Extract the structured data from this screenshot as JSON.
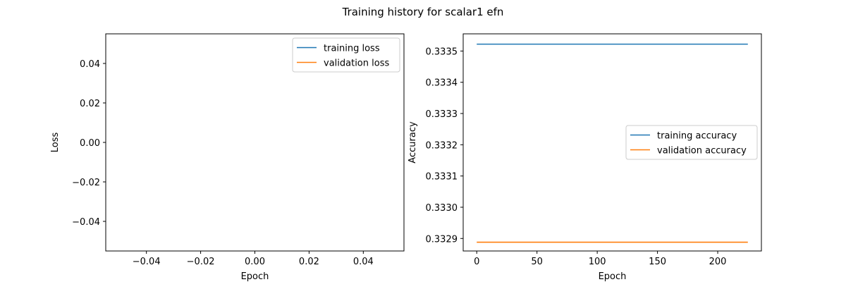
{
  "figure": {
    "title": "Training history for scalar1 efn"
  },
  "chart_data": [
    {
      "type": "line",
      "title": "",
      "xlabel": "Epoch",
      "ylabel": "Loss",
      "xlim": [
        -0.055,
        0.055
      ],
      "ylim": [
        -0.055,
        0.055
      ],
      "xticks": [
        -0.04,
        -0.02,
        0.0,
        0.02,
        0.04
      ],
      "xtick_labels": [
        "−0.04",
        "−0.02",
        "0.00",
        "0.02",
        "0.04"
      ],
      "yticks": [
        -0.04,
        -0.02,
        0.0,
        0.02,
        0.04
      ],
      "ytick_labels": [
        "−0.04",
        "−0.02",
        "0.00",
        "0.02",
        "0.04"
      ],
      "grid": false,
      "legend_position": "upper right",
      "series": [
        {
          "name": "training loss",
          "color": "#1f77b4",
          "x": [],
          "y": []
        },
        {
          "name": "validation loss",
          "color": "#ff7f0e",
          "x": [],
          "y": []
        }
      ]
    },
    {
      "type": "line",
      "title": "",
      "xlabel": "Epoch",
      "ylabel": "Accuracy",
      "xlim": [
        -11.25,
        236.25
      ],
      "ylim": [
        0.33286,
        0.333555
      ],
      "xticks": [
        0,
        50,
        100,
        150,
        200
      ],
      "xtick_labels": [
        "0",
        "50",
        "100",
        "150",
        "200"
      ],
      "yticks": [
        0.3329,
        0.333,
        0.3331,
        0.3332,
        0.3333,
        0.3334,
        0.3335
      ],
      "ytick_labels": [
        "0.3329",
        "0.3330",
        "0.3331",
        "0.3332",
        "0.3333",
        "0.3334",
        "0.3335"
      ],
      "grid": false,
      "legend_position": "center right",
      "series": [
        {
          "name": "training accuracy",
          "color": "#1f77b4",
          "x": [
            0,
            225
          ],
          "y": [
            0.333522,
            0.333522
          ]
        },
        {
          "name": "validation accuracy",
          "color": "#ff7f0e",
          "x": [
            0,
            225
          ],
          "y": [
            0.332888,
            0.332888
          ]
        }
      ]
    }
  ]
}
